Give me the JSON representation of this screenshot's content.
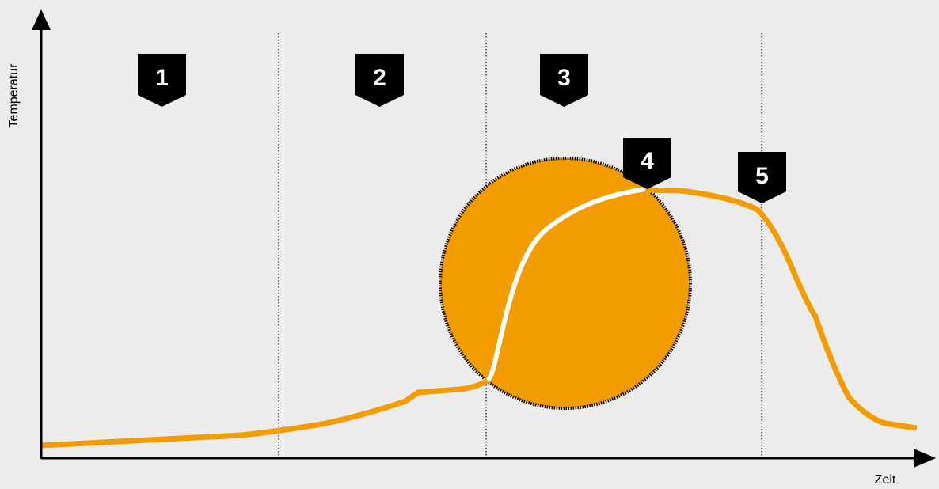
{
  "axes": {
    "x_label": "Zeit",
    "y_label": "Temperatur"
  },
  "phases": [
    {
      "label": "1"
    },
    {
      "label": "2"
    },
    {
      "label": "3"
    },
    {
      "label": "4"
    },
    {
      "label": "5"
    }
  ],
  "colors": {
    "background": "#ececec",
    "curve": "#f39c00",
    "curve_highlight": "#ffffff",
    "circle_fill": "#f39c00",
    "circle_border": "#000000",
    "badge": "#000000",
    "badge_text": "#ffffff",
    "axis": "#000000",
    "divider": "#000000"
  }
}
